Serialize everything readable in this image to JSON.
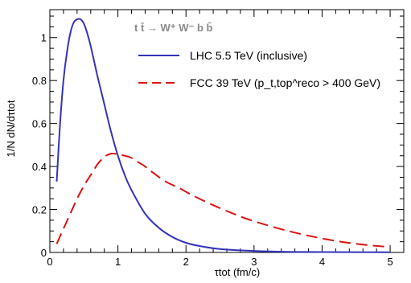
{
  "chart_data": {
    "type": "line",
    "xlabel": "τtot (fm/c)",
    "ylabel": "1/N dN/dτtot",
    "xlim": [
      0,
      5.2
    ],
    "ylim": [
      0,
      1.13
    ],
    "xticks": [
      "0",
      "1",
      "2",
      "3",
      "4",
      "5"
    ],
    "yticks": [
      "0",
      "0.2",
      "0.4",
      "0.6",
      "0.8",
      "1"
    ],
    "process_label": "t t̄ → W⁺ W⁻ b b̄",
    "legend_position": "top-right",
    "series": [
      {
        "name": "LHC 5.5 TeV (inclusive)",
        "color": "#3333bb",
        "style": "solid",
        "x": [
          0.1,
          0.15,
          0.2,
          0.25,
          0.3,
          0.35,
          0.4,
          0.45,
          0.5,
          0.55,
          0.6,
          0.7,
          0.8,
          0.9,
          1.0,
          1.1,
          1.2,
          1.4,
          1.6,
          1.8,
          2.0,
          2.2,
          2.5,
          3.0,
          3.5,
          4.0,
          5.0
        ],
        "y": [
          0.33,
          0.6,
          0.8,
          0.93,
          1.02,
          1.07,
          1.085,
          1.085,
          1.065,
          1.02,
          0.96,
          0.82,
          0.69,
          0.56,
          0.45,
          0.36,
          0.29,
          0.18,
          0.115,
          0.072,
          0.045,
          0.03,
          0.016,
          0.007,
          0.003,
          0.002,
          0.001
        ]
      },
      {
        "name": "FCC 39 TeV (p_t,top^reco > 400 GeV)",
        "color": "#dd1111",
        "style": "dashed",
        "x": [
          0.1,
          0.2,
          0.3,
          0.4,
          0.5,
          0.6,
          0.7,
          0.8,
          0.9,
          1.0,
          1.1,
          1.2,
          1.3,
          1.4,
          1.5,
          1.7,
          1.9,
          2.1,
          2.4,
          2.7,
          3.0,
          3.5,
          4.0,
          4.5,
          5.0
        ],
        "y": [
          0.04,
          0.11,
          0.18,
          0.25,
          0.31,
          0.36,
          0.41,
          0.445,
          0.46,
          0.457,
          0.45,
          0.44,
          0.42,
          0.4,
          0.375,
          0.33,
          0.3,
          0.265,
          0.22,
          0.18,
          0.145,
          0.1,
          0.065,
          0.04,
          0.025
        ]
      }
    ]
  }
}
